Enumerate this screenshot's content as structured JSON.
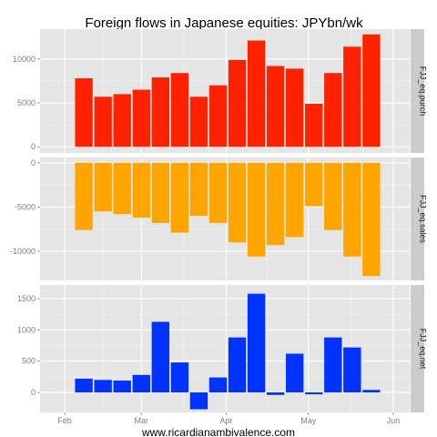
{
  "chart_data": {
    "type": "bar",
    "title": "Foreign flows in Japanese equities: JPYbn/wk",
    "caption": "www.ricardianambivalence.com",
    "x_axis": {
      "ticks": [
        "Feb",
        "Mar",
        "Apr",
        "May",
        "Jun"
      ]
    },
    "x_dates": [
      "2013-02-08",
      "2013-02-15",
      "2013-02-22",
      "2013-03-01",
      "2013-03-08",
      "2013-03-15",
      "2013-03-22",
      "2013-03-29",
      "2013-04-05",
      "2013-04-12",
      "2013-04-19",
      "2013-04-26",
      "2013-05-03",
      "2013-05-10",
      "2013-05-17",
      "2013-05-24"
    ],
    "panels": [
      {
        "name": "FJJ_eq.purch",
        "color": "#ff2200",
        "ylim": [
          -700,
          13400
        ],
        "yticks": [
          0,
          5000,
          10000
        ],
        "ytick_labels": [
          "0",
          "5000",
          "10000"
        ],
        "values": [
          7800,
          5700,
          6000,
          6500,
          7900,
          8400,
          5700,
          7000,
          9900,
          12100,
          9200,
          8900,
          4900,
          8400,
          11400,
          12800
        ]
      },
      {
        "name": "FJJ_eq.sales",
        "color": "#ffa500",
        "ylim": [
          -13300,
          600
        ],
        "yticks": [
          0,
          -5000,
          -10000
        ],
        "ytick_labels": [
          "0",
          "-5000",
          "-10000"
        ],
        "values": [
          -7600,
          -5500,
          -5800,
          -6200,
          -6800,
          -7900,
          -6000,
          -6800,
          -9000,
          -10600,
          -9300,
          -8400,
          -4900,
          -7600,
          -10600,
          -12800
        ]
      },
      {
        "name": "FJJ_eq.net",
        "color": "#0033ff",
        "ylim": [
          -320,
          1720
        ],
        "yticks": [
          0,
          500,
          1000,
          1500
        ],
        "ytick_labels": [
          "0",
          "500",
          "1000",
          "1500"
        ],
        "values": [
          220,
          200,
          190,
          280,
          1130,
          480,
          -270,
          240,
          880,
          1580,
          -40,
          620,
          -30,
          880,
          720,
          40
        ]
      }
    ]
  }
}
